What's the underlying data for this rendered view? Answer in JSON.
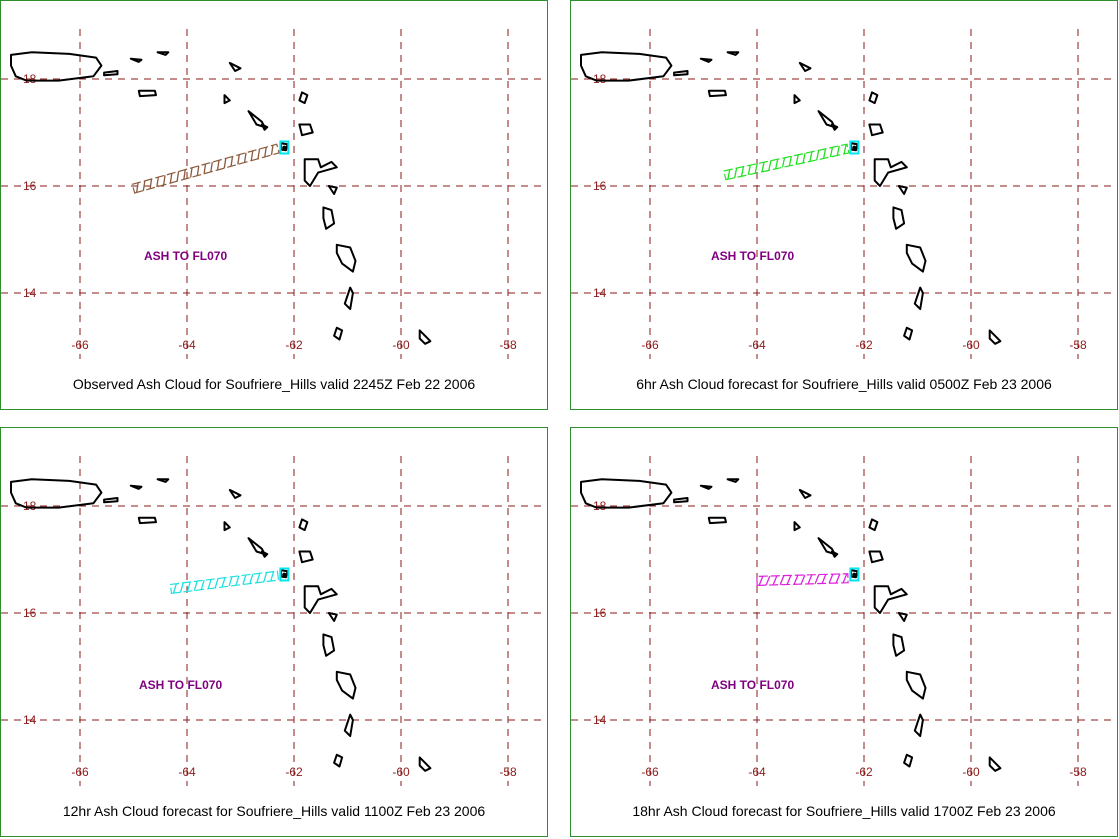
{
  "grid": {
    "longitudes": [
      -66,
      -64,
      -62,
      -60,
      -58
    ],
    "latitudes": [
      18,
      16,
      14
    ],
    "lon_labels": [
      "-66",
      "-64",
      "-62",
      "-60",
      "-58"
    ],
    "lat_labels": [
      "18",
      "16",
      "14"
    ]
  },
  "colors": {
    "grid": "#8b1a1a",
    "coast": "#000000",
    "volcano_marker": "#00e5ee",
    "annotation": "#800080",
    "border": "#2f8f2f"
  },
  "panels": [
    {
      "caption": "Observed Ash Cloud for Soufriere_Hills valid 2245Z Feb 22 2006",
      "annotation": "ASH TO FL070",
      "cloud_color": "#8b5a3c",
      "cloud": {
        "west_lon": -65.0,
        "west_lat": 15.95,
        "east_lon": -62.3,
        "east_lat": 16.7
      }
    },
    {
      "caption": "6hr Ash Cloud forecast for Soufriere_Hills valid 0500Z Feb 23 2006",
      "annotation": "ASH TO FL070",
      "cloud_color": "#22e022",
      "cloud": {
        "west_lon": -64.6,
        "west_lat": 16.2,
        "east_lon": -62.3,
        "east_lat": 16.7
      }
    },
    {
      "caption": "12hr Ash Cloud forecast for Soufriere_Hills valid 1100Z Feb 23 2006",
      "annotation": "ASH TO FL070",
      "cloud_color": "#1ee0e0",
      "cloud": {
        "west_lon": -64.3,
        "west_lat": 16.45,
        "east_lon": -62.3,
        "east_lat": 16.7
      }
    },
    {
      "caption": "18hr Ash Cloud forecast for Soufriere_Hills valid 1700Z Feb 23 2006",
      "annotation": "ASH TO FL070",
      "cloud_color": "#e020e0",
      "cloud": {
        "west_lon": -64.0,
        "west_lat": 16.6,
        "east_lon": -62.3,
        "east_lat": 16.65
      }
    }
  ]
}
